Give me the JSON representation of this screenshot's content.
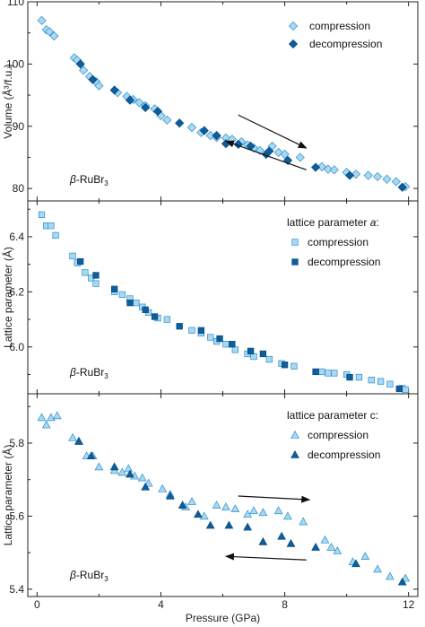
{
  "colors": {
    "light": "#a9d8f2",
    "light_stroke": "#2c8fc9",
    "dark": "#0d5e9c",
    "dark_stroke": "#0a4b80",
    "arrow": "#111111",
    "axis": "#222222"
  },
  "chart_data": [
    {
      "type": "scatter",
      "ylabel": "Volume (Å³/f.u.)",
      "sample_label": "β-RuBr₃",
      "sample_prefix": "β",
      "sample_main": "-RuBr",
      "sample_sub": "3",
      "legend_title": "",
      "marker": "diamond",
      "xlim": [
        -0.3,
        12.3
      ],
      "ylim": [
        78,
        110
      ],
      "yticks": [
        80,
        90,
        100,
        110
      ],
      "series": [
        {
          "name": "compression",
          "points": [
            [
              0.15,
              107
            ],
            [
              0.3,
              105.5
            ],
            [
              0.4,
              105.2
            ],
            [
              0.55,
              104.5
            ],
            [
              1.2,
              101
            ],
            [
              1.3,
              100.6
            ],
            [
              1.5,
              99
            ],
            [
              1.7,
              98
            ],
            [
              1.9,
              97.2
            ],
            [
              2.0,
              96.5
            ],
            [
              2.6,
              95.4
            ],
            [
              2.9,
              94.8
            ],
            [
              3.1,
              94.3
            ],
            [
              3.3,
              93.8
            ],
            [
              3.5,
              93.3
            ],
            [
              3.8,
              92.8
            ],
            [
              4.0,
              91.7
            ],
            [
              4.2,
              91
            ],
            [
              5.0,
              89.8
            ],
            [
              5.3,
              89
            ],
            [
              5.6,
              88.5
            ],
            [
              5.8,
              88.2
            ],
            [
              6.1,
              88.1
            ],
            [
              6.3,
              87.9
            ],
            [
              6.6,
              87.5
            ],
            [
              6.8,
              87
            ],
            [
              7.0,
              86.5
            ],
            [
              7.2,
              86.1
            ],
            [
              7.6,
              86.8
            ],
            [
              7.8,
              85.8
            ],
            [
              8.0,
              85.5
            ],
            [
              8.5,
              85
            ],
            [
              9.2,
              83.5
            ],
            [
              9.4,
              83.1
            ],
            [
              9.6,
              83
            ],
            [
              10.0,
              82.6
            ],
            [
              10.3,
              82.3
            ],
            [
              10.7,
              82.1
            ],
            [
              11.0,
              81.9
            ],
            [
              11.3,
              81.5
            ],
            [
              11.6,
              81.1
            ],
            [
              11.9,
              80.3
            ]
          ]
        },
        {
          "name": "decompression",
          "points": [
            [
              1.4,
              100
            ],
            [
              1.8,
              97.5
            ],
            [
              2.5,
              95.8
            ],
            [
              3.0,
              94.2
            ],
            [
              3.5,
              93
            ],
            [
              3.9,
              92.4
            ],
            [
              4.6,
              90.5
            ],
            [
              5.4,
              89.3
            ],
            [
              5.8,
              88.5
            ],
            [
              6.1,
              87.2
            ],
            [
              6.5,
              87.1
            ],
            [
              6.9,
              86.8
            ],
            [
              7.4,
              85.5
            ],
            [
              7.5,
              86
            ],
            [
              8.1,
              84.5
            ],
            [
              9.0,
              83.4
            ],
            [
              10.1,
              82.1
            ],
            [
              11.8,
              80.2
            ]
          ]
        }
      ],
      "arrows": [
        {
          "from": [
            6.5,
            91.8
          ],
          "to": [
            8.7,
            86.5
          ]
        },
        {
          "from": [
            8.7,
            83
          ],
          "to": [
            6.1,
            87.6
          ]
        }
      ]
    },
    {
      "type": "scatter",
      "ylabel": "Lattice parameter (Å)",
      "sample_label": "β-RuBr₃",
      "sample_prefix": "β",
      "sample_main": "-RuBr",
      "sample_sub": "3",
      "legend_title": "lattice parameter a:",
      "legend_title_plain": "lattice parameter ",
      "legend_title_var": "a",
      "legend_title_end": ":",
      "marker": "square",
      "xlim": [
        -0.3,
        12.3
      ],
      "ylim": [
        5.83,
        6.53
      ],
      "yticks": [
        6.0,
        6.2,
        6.4
      ],
      "ytick_labels": [
        "6.0",
        "6.2",
        "6.4"
      ],
      "series": [
        {
          "name": "compression",
          "points": [
            [
              0.15,
              6.48
            ],
            [
              0.3,
              6.44
            ],
            [
              0.45,
              6.44
            ],
            [
              0.6,
              6.405
            ],
            [
              1.15,
              6.33
            ],
            [
              1.3,
              6.305
            ],
            [
              1.55,
              6.27
            ],
            [
              1.75,
              6.25
            ],
            [
              1.9,
              6.23
            ],
            [
              2.5,
              6.2
            ],
            [
              2.75,
              6.19
            ],
            [
              3.0,
              6.175
            ],
            [
              3.2,
              6.16
            ],
            [
              3.4,
              6.145
            ],
            [
              3.6,
              6.125
            ],
            [
              3.9,
              6.105
            ],
            [
              4.2,
              6.1
            ],
            [
              5.0,
              6.06
            ],
            [
              5.3,
              6.05
            ],
            [
              5.6,
              6.035
            ],
            [
              5.8,
              6.02
            ],
            [
              6.1,
              6.01
            ],
            [
              6.4,
              5.99
            ],
            [
              6.8,
              5.975
            ],
            [
              7.0,
              5.965
            ],
            [
              7.5,
              5.955
            ],
            [
              7.9,
              5.94
            ],
            [
              8.3,
              5.93
            ],
            [
              9.2,
              5.91
            ],
            [
              9.4,
              5.905
            ],
            [
              9.6,
              5.905
            ],
            [
              10.0,
              5.9
            ],
            [
              10.4,
              5.89
            ],
            [
              10.8,
              5.88
            ],
            [
              11.1,
              5.875
            ],
            [
              11.4,
              5.865
            ],
            [
              11.8,
              5.85
            ],
            [
              11.9,
              5.845
            ]
          ]
        },
        {
          "name": "decompression",
          "points": [
            [
              1.4,
              6.31
            ],
            [
              1.9,
              6.26
            ],
            [
              2.5,
              6.21
            ],
            [
              3.0,
              6.16
            ],
            [
              3.5,
              6.135
            ],
            [
              3.8,
              6.11
            ],
            [
              4.6,
              6.075
            ],
            [
              5.3,
              6.06
            ],
            [
              5.9,
              6.03
            ],
            [
              6.3,
              6.01
            ],
            [
              6.9,
              5.985
            ],
            [
              7.3,
              5.975
            ],
            [
              8.0,
              5.935
            ],
            [
              9.0,
              5.91
            ],
            [
              10.1,
              5.89
            ],
            [
              11.7,
              5.848
            ]
          ]
        }
      ],
      "arrows": []
    },
    {
      "type": "scatter",
      "ylabel": "Lattice parameter (Å)",
      "sample_label": "β-RuBr₃",
      "sample_prefix": "β",
      "sample_main": "-RuBr",
      "sample_sub": "3",
      "legend_title": "lattice parameter c:",
      "legend_title_plain": "lattice parameter c:",
      "legend_title_var": "",
      "legend_title_end": "",
      "marker": "triangle",
      "xlabel": "Pressure (GPa)",
      "xlim": [
        -0.3,
        12.3
      ],
      "ylim": [
        5.38,
        5.935
      ],
      "yticks": [
        5.4,
        5.6,
        5.8
      ],
      "ytick_labels": [
        "5.4",
        "5.6",
        "5.8"
      ],
      "xticks": [
        0,
        4,
        8,
        12
      ],
      "series": [
        {
          "name": "compression",
          "points": [
            [
              0.15,
              5.87
            ],
            [
              0.3,
              5.85
            ],
            [
              0.45,
              5.87
            ],
            [
              0.65,
              5.875
            ],
            [
              1.15,
              5.815
            ],
            [
              1.35,
              5.805
            ],
            [
              1.6,
              5.765
            ],
            [
              1.8,
              5.765
            ],
            [
              2.0,
              5.735
            ],
            [
              2.5,
              5.725
            ],
            [
              2.75,
              5.72
            ],
            [
              2.95,
              5.73
            ],
            [
              3.15,
              5.71
            ],
            [
              3.4,
              5.705
            ],
            [
              3.6,
              5.69
            ],
            [
              4.05,
              5.675
            ],
            [
              4.3,
              5.66
            ],
            [
              4.8,
              5.625
            ],
            [
              5.0,
              5.64
            ],
            [
              5.4,
              5.6
            ],
            [
              5.8,
              5.63
            ],
            [
              6.1,
              5.625
            ],
            [
              6.4,
              5.62
            ],
            [
              6.8,
              5.605
            ],
            [
              7.0,
              5.615
            ],
            [
              7.3,
              5.61
            ],
            [
              7.8,
              5.615
            ],
            [
              8.1,
              5.6
            ],
            [
              8.6,
              5.585
            ],
            [
              9.3,
              5.535
            ],
            [
              9.5,
              5.515
            ],
            [
              9.7,
              5.505
            ],
            [
              10.2,
              5.475
            ],
            [
              10.6,
              5.49
            ],
            [
              11.0,
              5.455
            ],
            [
              11.4,
              5.435
            ],
            [
              11.9,
              5.43
            ]
          ]
        },
        {
          "name": "decompression",
          "points": [
            [
              1.35,
              5.805
            ],
            [
              1.75,
              5.765
            ],
            [
              2.5,
              5.735
            ],
            [
              3.0,
              5.715
            ],
            [
              3.5,
              5.68
            ],
            [
              4.3,
              5.655
            ],
            [
              4.7,
              5.63
            ],
            [
              5.2,
              5.605
            ],
            [
              5.6,
              5.575
            ],
            [
              6.2,
              5.575
            ],
            [
              6.8,
              5.57
            ],
            [
              7.3,
              5.53
            ],
            [
              7.9,
              5.545
            ],
            [
              8.2,
              5.525
            ],
            [
              9.0,
              5.515
            ],
            [
              10.3,
              5.47
            ],
            [
              11.8,
              5.42
            ]
          ]
        }
      ],
      "arrows": [
        {
          "from": [
            6.5,
            5.655
          ],
          "to": [
            8.8,
            5.645
          ]
        },
        {
          "from": [
            8.7,
            5.48
          ],
          "to": [
            6.1,
            5.49
          ]
        }
      ]
    }
  ]
}
